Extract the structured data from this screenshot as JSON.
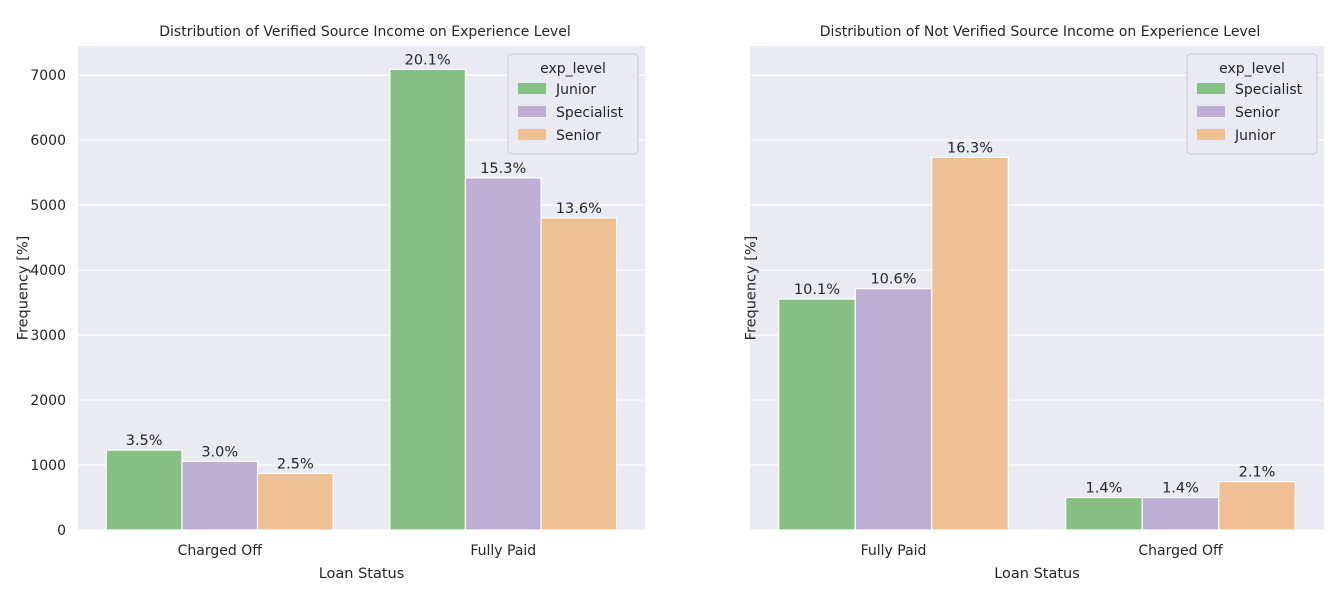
{
  "chart_data": [
    {
      "type": "bar",
      "title": "Distribution of Verified Source Income on Experience Level",
      "xlabel": "Loan Status",
      "ylabel": "Frequency [%]",
      "categories": [
        "Charged Off",
        "Fully Paid"
      ],
      "series": [
        {
          "name": "Junior",
          "color": "#88bf84",
          "values": [
            1230,
            7090
          ],
          "labels": [
            "3.5%",
            "20.1%"
          ]
        },
        {
          "name": "Specialist",
          "color": "#bdafd3",
          "values": [
            1055,
            5420
          ],
          "labels": [
            "3.0%",
            "15.3%"
          ]
        },
        {
          "name": "Senior",
          "color": "#efc093",
          "values": [
            870,
            4805
          ],
          "labels": [
            "2.5%",
            "13.6%"
          ]
        }
      ],
      "ylim": [
        0,
        7450
      ],
      "yticks": [
        0,
        1000,
        2000,
        3000,
        4000,
        5000,
        6000,
        7000
      ],
      "show_ytick_labels": true,
      "legend": {
        "title": "exp_level",
        "placement": "top-right"
      },
      "grid": true
    },
    {
      "type": "bar",
      "title": "Distribution of Not Verified Source Income on Experience Level",
      "xlabel": "Loan Status",
      "ylabel": "Frequency [%]",
      "categories": [
        "Fully Paid",
        "Charged Off"
      ],
      "series": [
        {
          "name": "Specialist",
          "color": "#88bf84",
          "values": [
            3555,
            500
          ],
          "labels": [
            "10.1%",
            "1.4%"
          ]
        },
        {
          "name": "Senior",
          "color": "#bdafd3",
          "values": [
            3715,
            500
          ],
          "labels": [
            "10.6%",
            "1.4%"
          ]
        },
        {
          "name": "Junior",
          "color": "#efc093",
          "values": [
            5735,
            745
          ],
          "labels": [
            "16.3%",
            "2.1%"
          ]
        }
      ],
      "ylim": [
        0,
        7450
      ],
      "yticks": [
        0,
        1000,
        2000,
        3000,
        4000,
        5000,
        6000,
        7000
      ],
      "show_ytick_labels": false,
      "legend": {
        "title": "exp_level",
        "placement": "top-right"
      },
      "grid": true
    }
  ]
}
